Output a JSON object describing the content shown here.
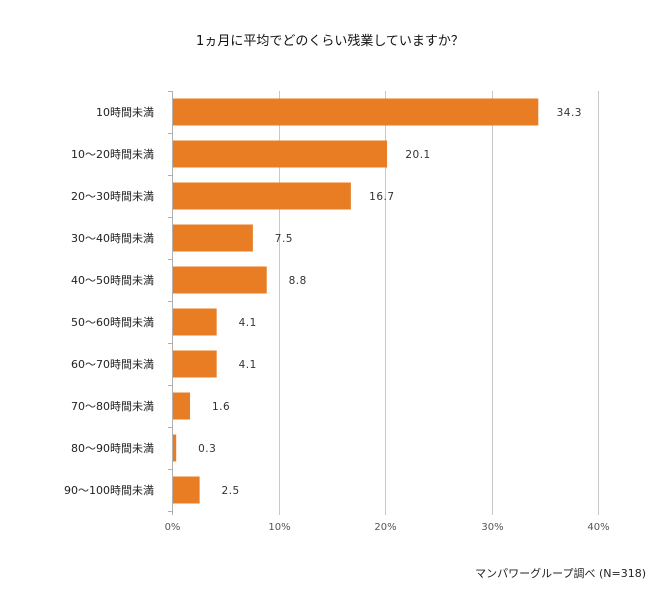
{
  "chart_data": {
    "type": "bar",
    "orientation": "horizontal",
    "title": "1ヵ月に平均でどのくらい残業していますか？",
    "categories": [
      "10時間未満",
      "10〜20時間未満",
      "20〜30時間未満",
      "30〜40時間未満",
      "40〜50時間未満",
      "50〜60時間未満",
      "60〜70時間未満",
      "70〜80時間未満",
      "80〜90時間未満",
      "90〜100時間未満"
    ],
    "values": [
      34.3,
      20.1,
      16.7,
      7.5,
      8.8,
      4.1,
      4.1,
      1.6,
      0.3,
      2.5
    ],
    "data_labels": [
      "34.3",
      "20.1",
      "16.7",
      "7.5",
      "8.8",
      "4.1",
      "4.1",
      "1.6",
      "0.3",
      "2.5"
    ],
    "xlabel": "",
    "ylabel": "",
    "xlim": [
      0,
      40
    ],
    "xticks": [
      0,
      10,
      20,
      30,
      40
    ],
    "xtick_labels": [
      "0%",
      "10%",
      "20%",
      "30%",
      "40%"
    ],
    "grid": true,
    "legend": "none",
    "bar_color": "#e87d23",
    "grid_color": "#c8c8c8"
  },
  "source_note": "マンパワーグループ調べ (N=318)"
}
